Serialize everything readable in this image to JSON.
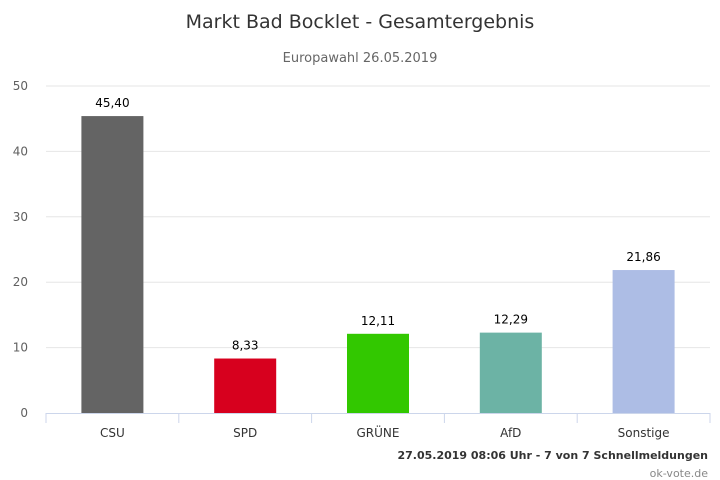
{
  "chart_data": {
    "type": "bar",
    "title": "Markt Bad Bocklet - Gesamtergebnis",
    "subtitle": "Europawahl 26.05.2019",
    "categories": [
      "CSU",
      "SPD",
      "GRÜNE",
      "AfD",
      "Sonstige"
    ],
    "values": [
      45.4,
      8.33,
      12.11,
      12.29,
      21.86
    ],
    "value_labels": [
      "45,40",
      "8,33",
      "12,11",
      "12,29",
      "21,86"
    ],
    "colors": [
      "#646464",
      "#d7001e",
      "#32c800",
      "#6cb3a5",
      "#adbde5"
    ],
    "ylim": [
      0,
      50
    ],
    "yticks": [
      0,
      10,
      20,
      30,
      40,
      50
    ],
    "xlabel": "",
    "ylabel": "",
    "grid": true,
    "legend": "none"
  },
  "footer": {
    "status": "27.05.2019 08:06 Uhr - 7 von 7 Schnellmeldungen",
    "credit": "ok-vote.de"
  }
}
